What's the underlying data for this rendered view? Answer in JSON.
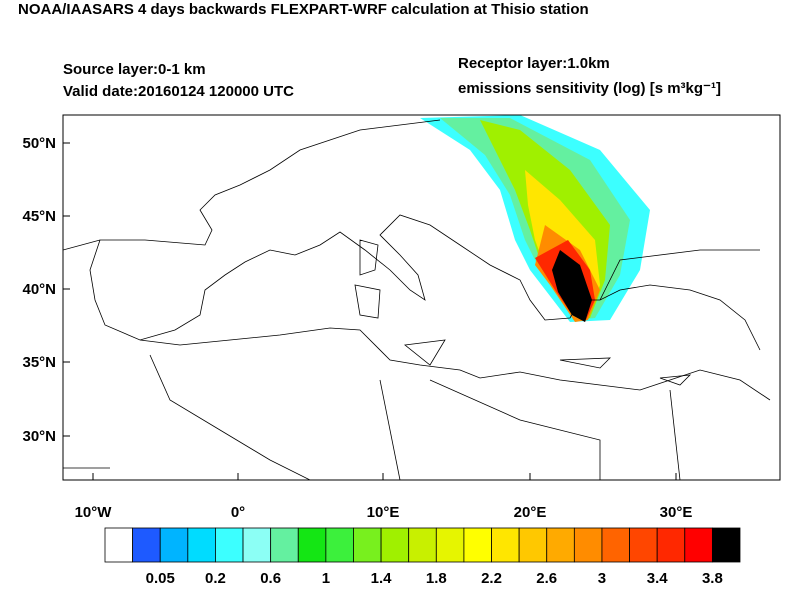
{
  "header": {
    "title": "NOAA/IAASARS 4 days backwards FLEXPART-WRF calculation at Thisio station",
    "source_layer": "Source layer:0-1 km",
    "valid_date": "Valid date:20160124 120000 UTC",
    "receptor_layer": "Receptor layer:1.0km",
    "units": "emissions sensitivity (log) [s m³kg⁻¹]"
  },
  "map": {
    "lat_labels": [
      "50°N",
      "45°N",
      "40°N",
      "35°N",
      "30°N"
    ],
    "lon_labels": [
      "10°W",
      "0°",
      "10°E",
      "20°E",
      "30°E"
    ]
  },
  "colorbar": {
    "labels": [
      "0.05",
      "0.2",
      "0.6",
      "1",
      "1.4",
      "1.8",
      "2.2",
      "2.6",
      "3",
      "3.4",
      "3.8"
    ],
    "colors": [
      "#ffffff",
      "#1e5aff",
      "#00b4ff",
      "#00dcff",
      "#3cffff",
      "#8cfff5",
      "#64f0a0",
      "#14e614",
      "#3cf03c",
      "#78f01e",
      "#a0f000",
      "#c8f000",
      "#e6f500",
      "#ffff00",
      "#ffe600",
      "#ffc800",
      "#ffaa00",
      "#ff8c00",
      "#ff6400",
      "#ff4600",
      "#ff2800",
      "#ff0000",
      "#000000"
    ]
  }
}
